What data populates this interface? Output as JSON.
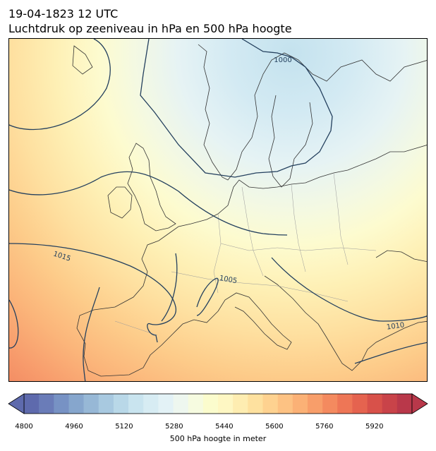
{
  "header": {
    "datetime": "19-04-1823 12 UTC",
    "subtitle": "Luchtdruk op zeeniveau in hPa en 500 hPa hoogte"
  },
  "map": {
    "isobar_labels": [
      {
        "text": "1000",
        "value": 1000
      },
      {
        "text": "1015",
        "value": 1015
      },
      {
        "text": "1005",
        "value": 1005
      },
      {
        "text": "1010",
        "value": 1010
      }
    ],
    "isobar_color": "#24405e",
    "coast_color": "#333333"
  },
  "colorbar": {
    "label": "500 hPa hoogte in meter",
    "min": 4800,
    "max": 6040,
    "step": 40,
    "extend": "both",
    "ticks": [
      "4800",
      "4960",
      "5120",
      "5280",
      "5440",
      "5600",
      "5760",
      "5920"
    ],
    "colormap": "RdYlBu_r",
    "colors": [
      "#5e6aad",
      "#6a7cb8",
      "#7792c4",
      "#86a6cd",
      "#97b8d6",
      "#a8c9e0",
      "#b9d8e8",
      "#c9e4ef",
      "#d7ecf3",
      "#e3f2f6",
      "#eef7ef",
      "#f6fbe0",
      "#fbfccd",
      "#fef7c3",
      "#feedb1",
      "#fee19f",
      "#fed290",
      "#fdc283",
      "#fbb176",
      "#f89e6a",
      "#f48a5f",
      "#ee7656",
      "#e5634f",
      "#d8514a",
      "#c94349",
      "#b9384a"
    ]
  }
}
